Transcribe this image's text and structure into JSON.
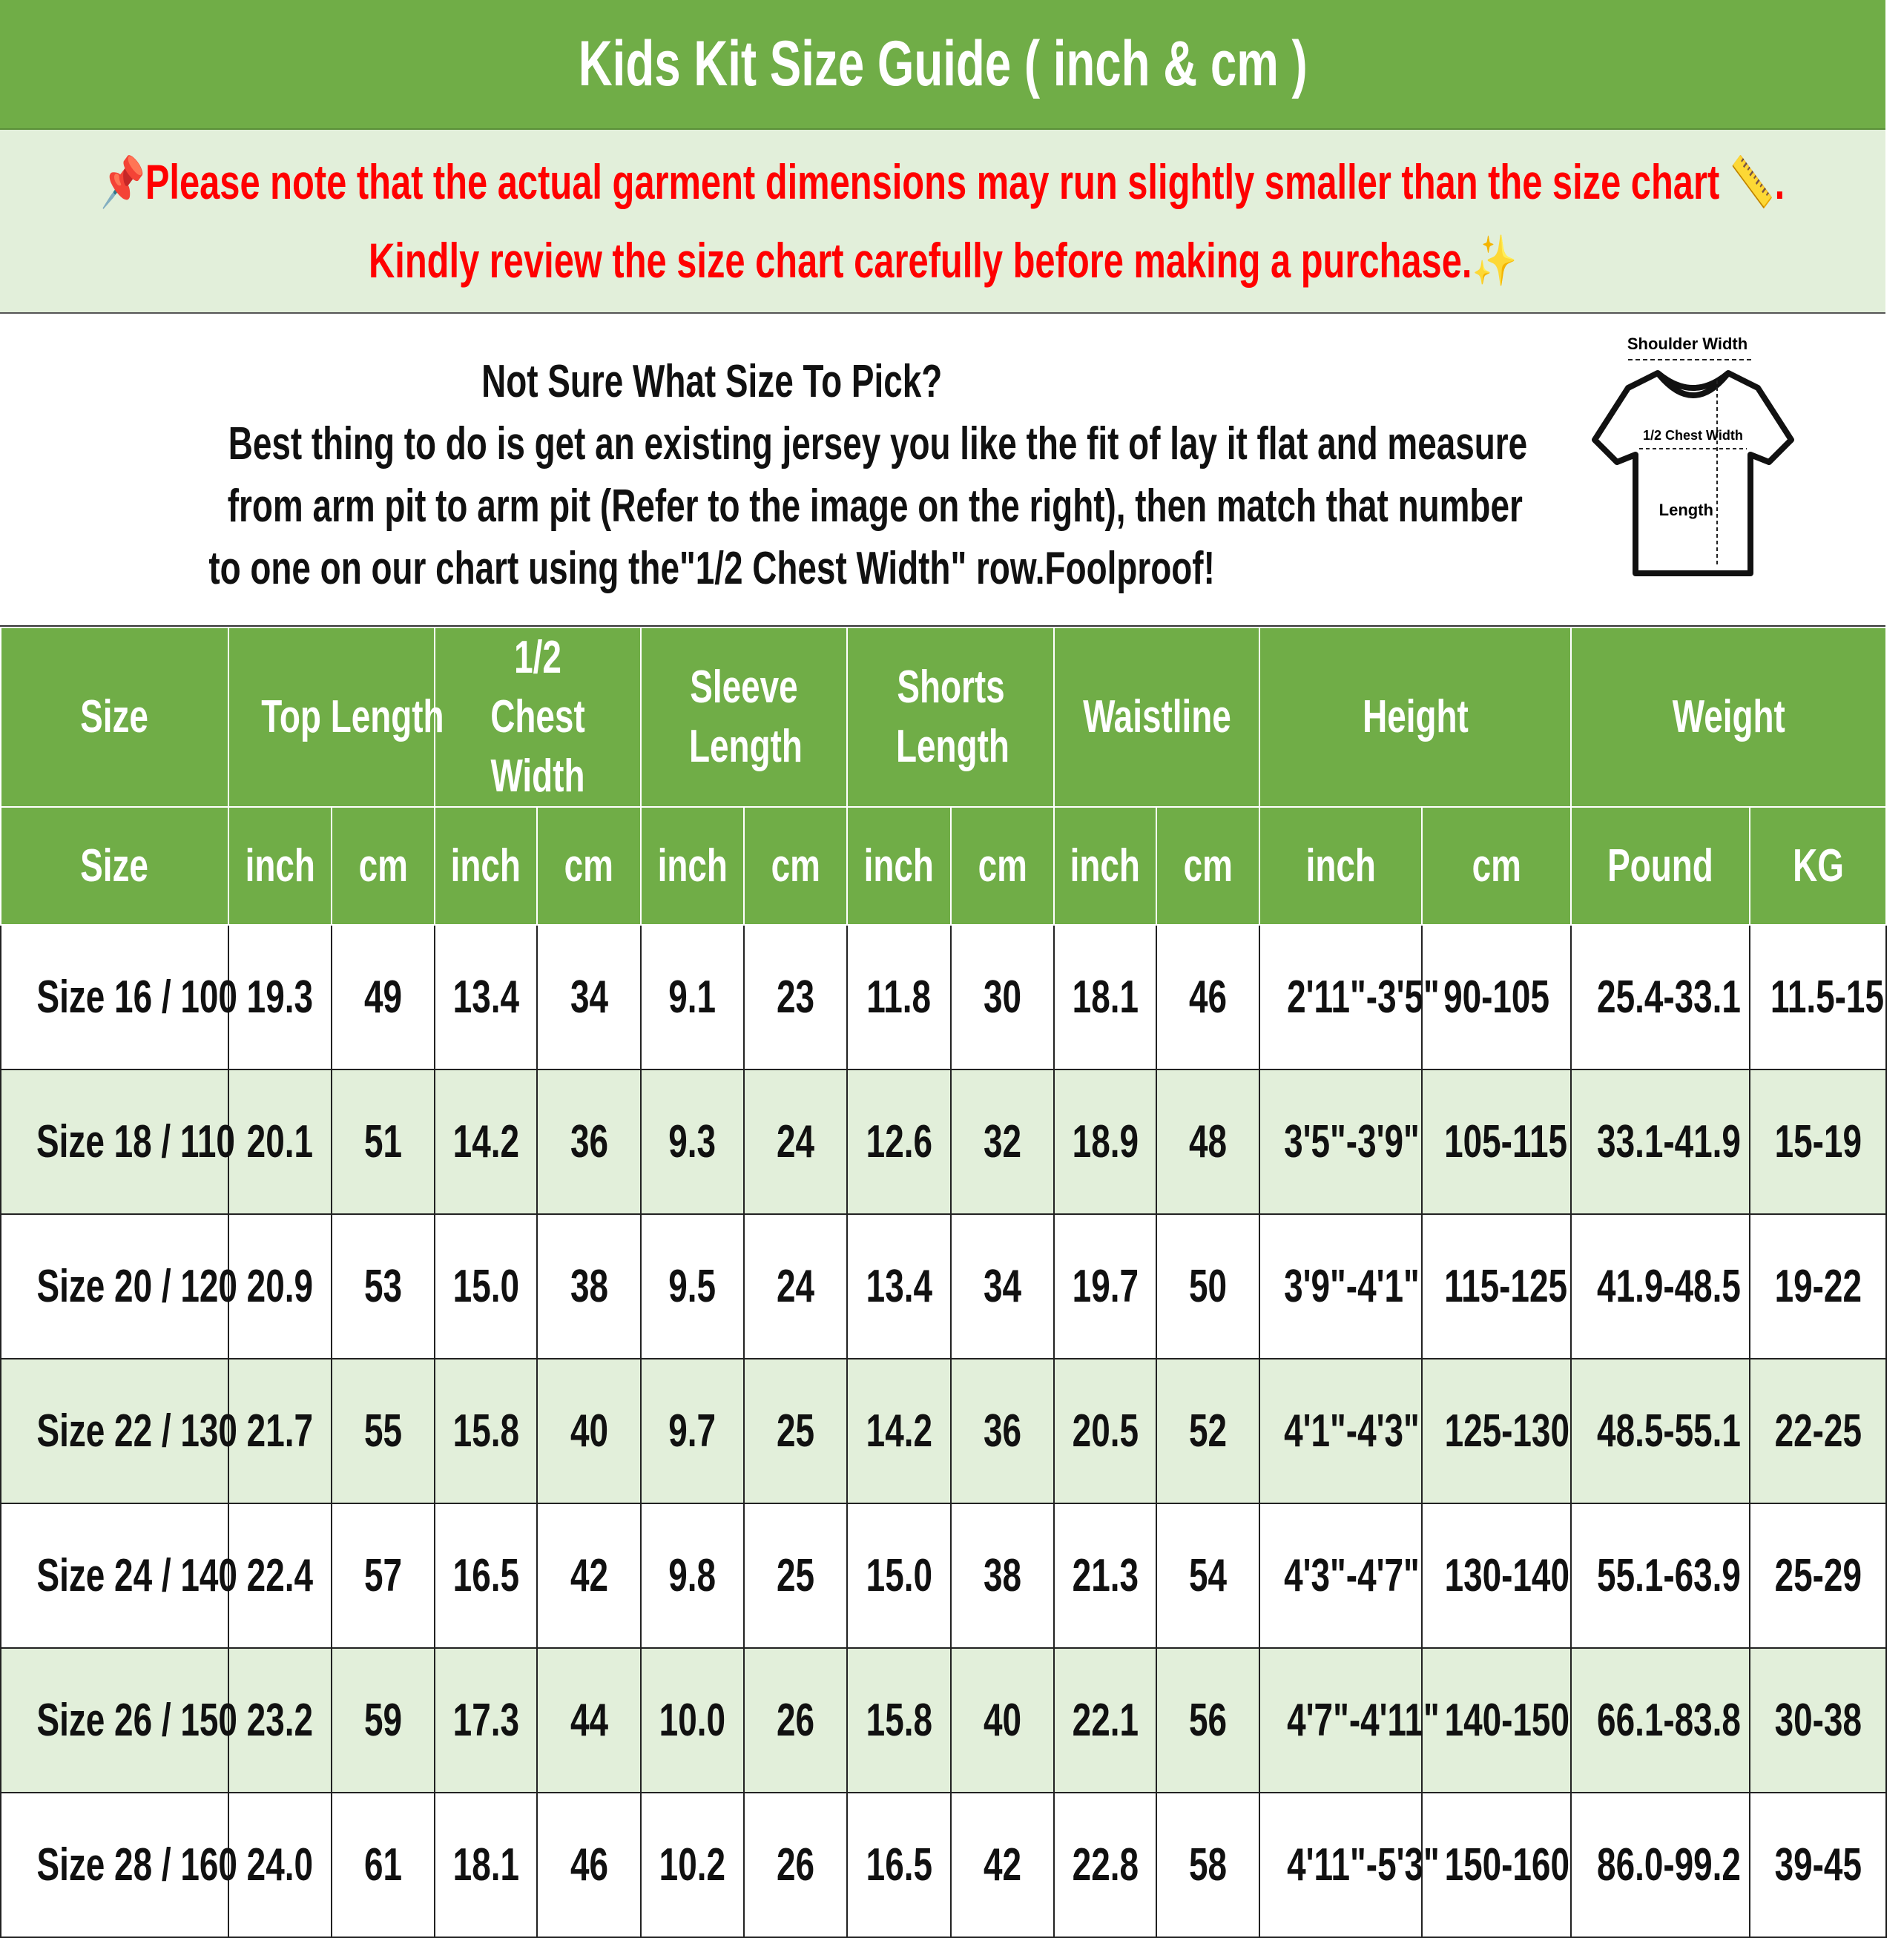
{
  "title": "Kids Kit Size Guide ( inch & cm )",
  "note": {
    "line1": "Please note that the actual garment dimensions may run slightly smaller than the size chart",
    "line1_end": ".",
    "line2": "Kindly review the size chart carefully before making a purchase.",
    "pin_icon": "📌",
    "ruler_icon": "📏",
    "sparkle_icon": "✨"
  },
  "info": {
    "heading": "Not Sure What Size To Pick?",
    "body1": "Best thing to do is get an existing jersey you like the fit of lay it flat and measure",
    "body2": "from arm pit to arm pit (Refer to the image on the right), then match that number",
    "body3": "to one on our chart using the\"1/2 Chest Width\" row.Foolproof!"
  },
  "diagram": {
    "shoulder": "Shoulder Width",
    "chest": "1/2 Chest Width",
    "length": "Length"
  },
  "colors": {
    "header_green": "#70AD47",
    "alt_row": "#E2EFDA",
    "note_red": "#FF0000"
  },
  "headers": [
    "Size",
    "Top Length",
    "1/2 Chest Width",
    "Sleeve Length",
    "Shorts Length",
    "Waistline",
    "Height",
    "Weight"
  ],
  "subheaders": [
    "Size",
    "inch",
    "cm",
    "inch",
    "cm",
    "inch",
    "cm",
    "inch",
    "cm",
    "inch",
    "cm",
    "inch",
    "cm",
    "Pound",
    "KG"
  ],
  "rows": [
    [
      "Size 16 / 100",
      "19.3",
      "49",
      "13.4",
      "34",
      "9.1",
      "23",
      "11.8",
      "30",
      "18.1",
      "46",
      "2'11\"-3'5\"",
      "90-105",
      "25.4-33.1",
      "11.5-15"
    ],
    [
      "Size 18 / 110",
      "20.1",
      "51",
      "14.2",
      "36",
      "9.3",
      "24",
      "12.6",
      "32",
      "18.9",
      "48",
      "3'5\"-3'9\"",
      "105-115",
      "33.1-41.9",
      "15-19"
    ],
    [
      "Size 20 / 120",
      "20.9",
      "53",
      "15.0",
      "38",
      "9.5",
      "24",
      "13.4",
      "34",
      "19.7",
      "50",
      "3'9\"-4'1\"",
      "115-125",
      "41.9-48.5",
      "19-22"
    ],
    [
      "Size 22 / 130",
      "21.7",
      "55",
      "15.8",
      "40",
      "9.7",
      "25",
      "14.2",
      "36",
      "20.5",
      "52",
      "4'1\"-4'3\"",
      "125-130",
      "48.5-55.1",
      "22-25"
    ],
    [
      "Size 24 / 140",
      "22.4",
      "57",
      "16.5",
      "42",
      "9.8",
      "25",
      "15.0",
      "38",
      "21.3",
      "54",
      "4'3\"-4'7\"",
      "130-140",
      "55.1-63.9",
      "25-29"
    ],
    [
      "Size 26 / 150",
      "23.2",
      "59",
      "17.3",
      "44",
      "10.0",
      "26",
      "15.8",
      "40",
      "22.1",
      "56",
      "4'7\"-4'11\"",
      "140-150",
      "66.1-83.8",
      "30-38"
    ],
    [
      "Size 28 / 160",
      "24.0",
      "61",
      "18.1",
      "46",
      "10.2",
      "26",
      "16.5",
      "42",
      "22.8",
      "58",
      "4'11\"-5'3\"",
      "150-160",
      "86.0-99.2",
      "39-45"
    ]
  ]
}
